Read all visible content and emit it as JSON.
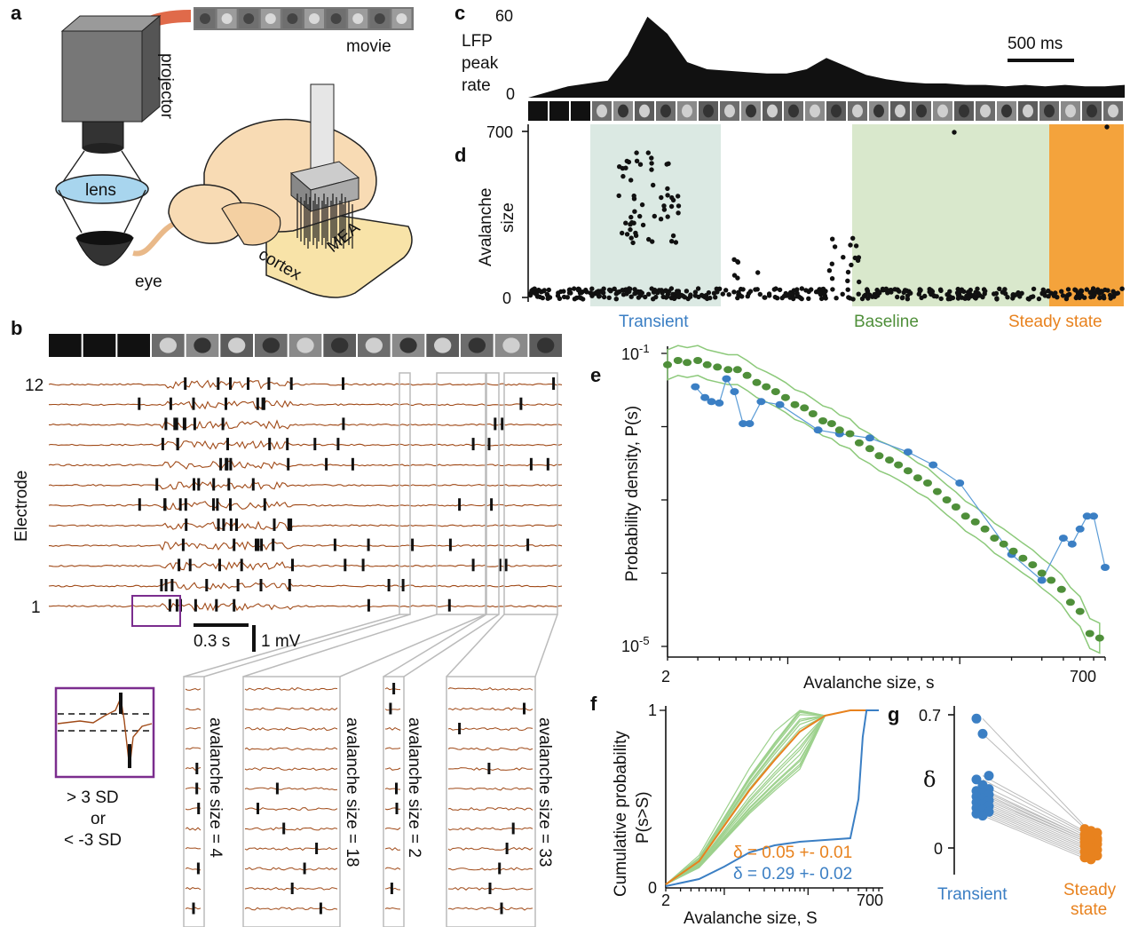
{
  "panel_labels": {
    "a": "a",
    "b": "b",
    "c": "c",
    "d": "d",
    "e": "e",
    "f": "f",
    "g": "g"
  },
  "panel_a": {
    "movie": "movie",
    "projector": "projector",
    "lens": "lens",
    "eye": "eye",
    "mea": "MEA",
    "cortex": "cortex"
  },
  "panel_b": {
    "y_label": "Electrode",
    "electrode_top": "12",
    "electrode_bottom": "1",
    "scale_time": "0.3 s",
    "scale_volt": "1 mV",
    "threshold_1": "> 3 SD",
    "threshold_or": "or",
    "threshold_2": "< -3 SD",
    "avalanches": [
      "avalanche size = 4",
      "avalanche size = 18",
      "avalanche size = 2",
      "avalanche size = 33"
    ]
  },
  "panel_c": {
    "y_label_lines": [
      "LFP",
      "peak",
      "rate"
    ],
    "y_max": "60",
    "y_min": "0",
    "scale": "500 ms"
  },
  "panel_d": {
    "y_label_lines": [
      "Avalanche",
      "size"
    ],
    "y_max": "700",
    "y_min": "0",
    "regions": {
      "transient": "Transient",
      "baseline": "Baseline",
      "steady": "Steady state"
    }
  },
  "colors": {
    "transient": "#3b7fc4",
    "baseline": "#4f8f3a",
    "steady": "#e8821e",
    "transient_bg": "#dbe9e3",
    "baseline_bg": "#d9e8cc",
    "steady_bg": "#f4a33c",
    "trace": "#a04a18",
    "frame": "#7b2d8e"
  },
  "panel_e": {
    "y_label": "Probability density, P(s)",
    "x_label": "Avalanche size, s",
    "x_min": "2",
    "x_max": "700",
    "y_top": "10",
    "y_top_exp": "-1",
    "y_bot": "10",
    "y_bot_exp": "-5"
  },
  "panel_f": {
    "y_label": "Cumulative probability",
    "y_label2": "P(s>S)",
    "x_label": "Avalanche size, S",
    "x_min": "2",
    "x_max": "700",
    "y_max": "1",
    "y_min": "0",
    "delta_steady": "δ = 0.05 +- 0.01",
    "delta_transient": "δ = 0.29 +- 0.02"
  },
  "panel_g": {
    "y_label": "δ",
    "y_max": "0.7",
    "y_min": "0",
    "x_transient": "Transient",
    "x_steady_1": "Steady",
    "x_steady_2": "state"
  },
  "chart_data": [
    {
      "type": "area",
      "panel": "c",
      "ylabel": "LFP peak rate",
      "ylim": [
        0,
        60
      ],
      "x_ms": [
        0,
        200,
        400,
        500,
        600,
        700,
        800,
        900,
        1000,
        1100,
        1200,
        1300,
        1400,
        1500,
        1600,
        1700,
        1800,
        1900,
        2000,
        2100,
        2200,
        2300,
        2400,
        2500,
        2600,
        2700,
        2800,
        2900,
        3000
      ],
      "values": [
        0,
        8,
        12,
        30,
        57,
        45,
        25,
        20,
        19,
        18,
        17,
        17,
        20,
        28,
        22,
        16,
        13,
        11,
        10,
        10,
        9,
        9,
        8,
        9,
        8,
        9,
        8,
        8,
        9
      ]
    },
    {
      "type": "scatter",
      "panel": "e",
      "xlabel": "Avalanche size, s",
      "ylabel": "Probability density, P(s)",
      "xscale": "log",
      "yscale": "log",
      "xlim": [
        2,
        700
      ],
      "series": [
        {
          "name": "Transient",
          "x": [
            2.9,
            3.3,
            3.6,
            4.0,
            4.4,
            4.9,
            5.5,
            6.0,
            7,
            9,
            15,
            20,
            30,
            50,
            70,
            100,
            200,
            300,
            400,
            450,
            500,
            550,
            600,
            700
          ],
          "y": [
            0.035,
            0.025,
            0.022,
            0.021,
            0.045,
            0.03,
            0.011,
            0.011,
            0.022,
            0.02,
            0.009,
            0.008,
            0.007,
            0.0045,
            0.003,
            0.0017,
            0.00018,
            8e-05,
            0.0003,
            0.00025,
            0.0004,
            0.0006,
            0.0006,
            0.00012
          ]
        },
        {
          "name": "Baseline",
          "x": [
            2,
            2.3,
            2.6,
            3,
            3.4,
            3.9,
            4.5,
            5.1,
            5.8,
            6.6,
            7.5,
            8.5,
            9.7,
            11,
            12.5,
            14,
            16,
            18,
            20,
            23,
            26,
            30,
            34,
            39,
            44,
            50,
            57,
            65,
            74,
            84,
            95,
            108,
            123,
            140,
            159,
            180,
            205,
            233,
            265,
            300,
            340,
            390,
            440,
            500,
            570,
            650
          ],
          "y": [
            0.07,
            0.08,
            0.075,
            0.08,
            0.07,
            0.065,
            0.06,
            0.06,
            0.05,
            0.04,
            0.035,
            0.03,
            0.025,
            0.02,
            0.018,
            0.015,
            0.012,
            0.011,
            0.009,
            0.008,
            0.006,
            0.005,
            0.004,
            0.0035,
            0.003,
            0.0025,
            0.002,
            0.0017,
            0.0013,
            0.001,
            0.0008,
            0.0006,
            0.0005,
            0.0004,
            0.0003,
            0.00025,
            0.0002,
            0.00016,
            0.00013,
            0.0001,
            8e-05,
            6e-05,
            4e-05,
            3e-05,
            1.5e-05,
            1.3e-05
          ]
        }
      ]
    },
    {
      "type": "line",
      "panel": "f",
      "xlabel": "Avalanche size, S",
      "ylabel": "Cumulative probability P(s>S)",
      "xscale": "log",
      "xlim": [
        2,
        700
      ],
      "ylim": [
        0,
        1
      ],
      "series": [
        {
          "name": "Steady state",
          "x": [
            2,
            5,
            10,
            20,
            40,
            80,
            160,
            320,
            700
          ],
          "values": [
            0.02,
            0.15,
            0.35,
            0.55,
            0.72,
            0.88,
            0.97,
            1,
            1
          ]
        },
        {
          "name": "Transient",
          "x": [
            2,
            5,
            10,
            20,
            40,
            80,
            160,
            320,
            400,
            450,
            500,
            700
          ],
          "values": [
            0.01,
            0.05,
            0.12,
            0.2,
            0.24,
            0.26,
            0.27,
            0.28,
            0.5,
            0.85,
            1,
            1
          ]
        }
      ]
    },
    {
      "type": "scatter",
      "panel": "g",
      "ylabel": "δ",
      "ylim": [
        -0.1,
        0.7
      ],
      "categories": [
        "Transient",
        "Steady state"
      ],
      "series": [
        {
          "name": "Transient",
          "values": [
            0.68,
            0.6,
            0.38,
            0.36,
            0.33,
            0.31,
            0.3,
            0.29,
            0.28,
            0.27,
            0.26,
            0.25,
            0.24,
            0.23,
            0.22,
            0.21,
            0.2,
            0.19,
            0.18,
            0.17
          ]
        },
        {
          "name": "Steady state",
          "values": [
            0.1,
            0.09,
            0.08,
            0.07,
            0.06,
            0.05,
            0.05,
            0.04,
            0.04,
            0.03,
            0.03,
            0.02,
            0.01,
            0.0,
            -0.01,
            -0.02,
            -0.03,
            -0.04,
            -0.05,
            -0.06
          ]
        }
      ]
    }
  ]
}
